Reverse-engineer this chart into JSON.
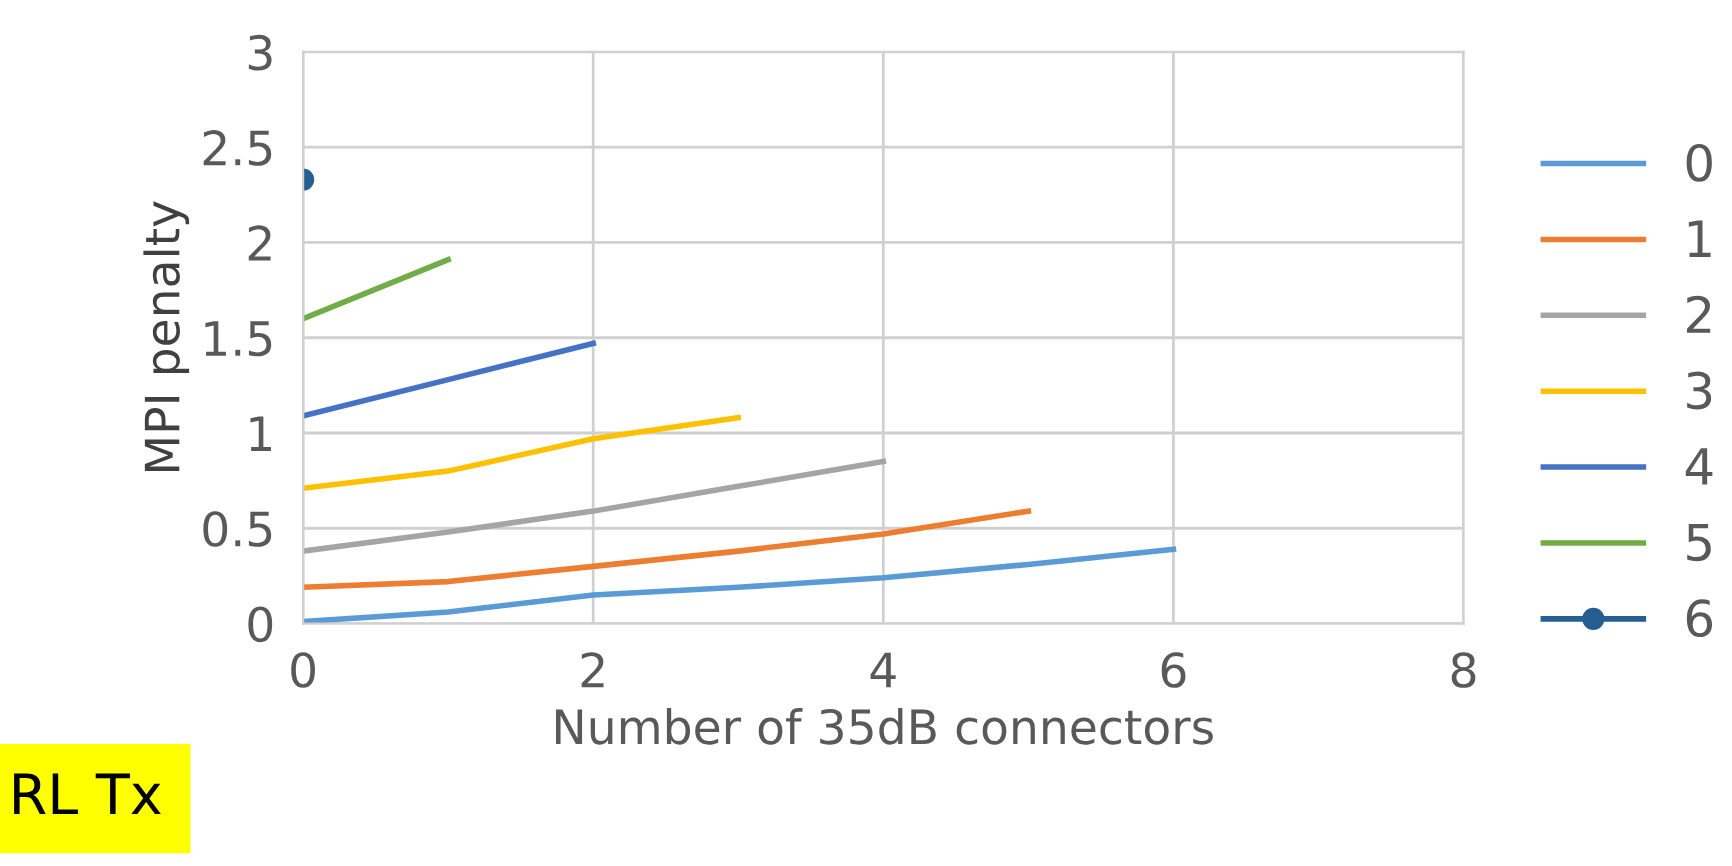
{
  "chart_data": {
    "type": "line",
    "xlabel": "Number of 35dB connectors",
    "ylabel": "MPI penalty",
    "xlim": [
      0,
      8
    ],
    "xticks": [
      0,
      2,
      4,
      6,
      8
    ],
    "ylim": [
      0,
      3
    ],
    "yticks": [
      0,
      0.5,
      1,
      1.5,
      2,
      2.5,
      3
    ],
    "grid": true,
    "legend": "right",
    "annotations": [
      "RL Tx"
    ],
    "series": [
      {
        "name": "0",
        "color": "#5b9bd5",
        "x": [
          0,
          1,
          2,
          3,
          4,
          5,
          6
        ],
        "values": [
          0.01,
          0.06,
          0.15,
          0.19,
          0.24,
          0.31,
          0.39
        ]
      },
      {
        "name": "1",
        "color": "#ed7d31",
        "x": [
          0,
          1,
          2,
          3,
          4,
          5
        ],
        "values": [
          0.19,
          0.22,
          0.3,
          0.38,
          0.47,
          0.59
        ]
      },
      {
        "name": "2",
        "color": "#a5a5a5",
        "x": [
          0,
          1,
          2,
          3,
          4
        ],
        "values": [
          0.38,
          0.48,
          0.59,
          0.72,
          0.85
        ]
      },
      {
        "name": "3",
        "color": "#ffc000",
        "x": [
          0,
          1,
          2,
          3
        ],
        "values": [
          0.71,
          0.8,
          0.97,
          1.08
        ]
      },
      {
        "name": "4",
        "color": "#4472c4",
        "x": [
          0,
          1,
          2
        ],
        "values": [
          1.09,
          1.28,
          1.47
        ]
      },
      {
        "name": "5",
        "color": "#70ad47",
        "x": [
          0,
          1
        ],
        "values": [
          1.6,
          1.91
        ]
      },
      {
        "name": "6",
        "color": "#255e91",
        "x": [
          0
        ],
        "values": [
          2.33
        ],
        "marker": "circle"
      }
    ]
  }
}
